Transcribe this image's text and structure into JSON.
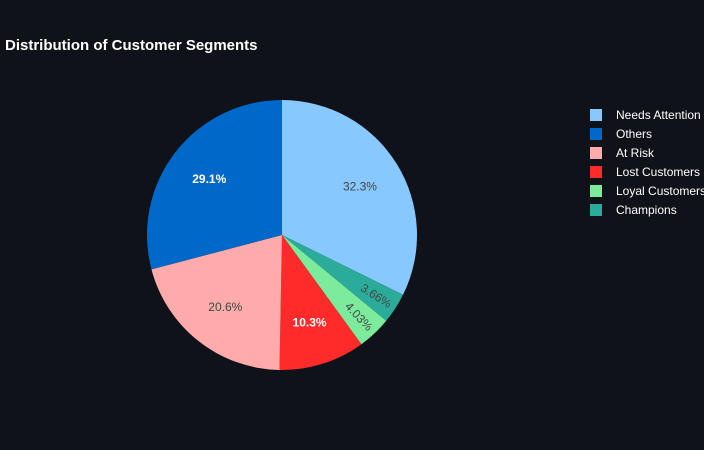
{
  "chart_data": {
    "type": "pie",
    "title": "Distribution of Customer Segments",
    "slices": [
      {
        "name": "Needs Attention",
        "value": 32.3,
        "label": "32.3%",
        "color": "#87c8ff",
        "label_color": "#444444"
      },
      {
        "name": "Champions",
        "value": 3.66,
        "label": "3.66%",
        "color": "#2bac9b",
        "label_color": "#444444"
      },
      {
        "name": "Loyal Customers",
        "value": 4.03,
        "label": "4.03%",
        "color": "#7ceb9c",
        "label_color": "#444444"
      },
      {
        "name": "Lost Customers",
        "value": 10.3,
        "label": "10.3%",
        "color": "#ff2b2b",
        "label_color": "#ffffff"
      },
      {
        "name": "At Risk",
        "value": 20.6,
        "label": "20.6%",
        "color": "#ffabab",
        "label_color": "#444444"
      },
      {
        "name": "Others",
        "value": 29.1,
        "label": "29.1%",
        "color": "#0068c9",
        "label_color": "#ffffff"
      }
    ],
    "legend": {
      "position": "right",
      "entries": [
        "Needs Attention",
        "Others",
        "At Risk",
        "Lost Customers",
        "Loyal Customers",
        "Champions"
      ]
    },
    "direction": "clockwise",
    "start": "top",
    "background": "#0f1218"
  }
}
